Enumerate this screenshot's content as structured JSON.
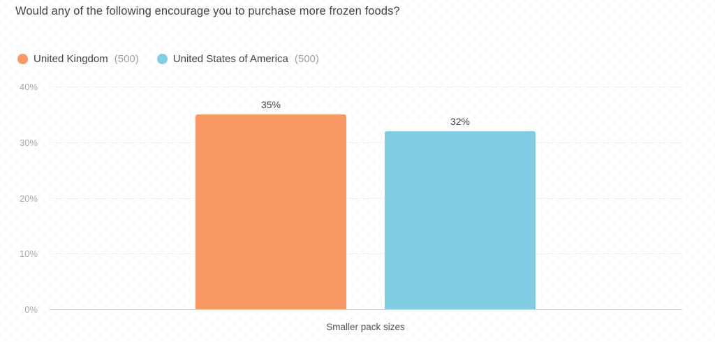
{
  "title": "Would any of the following encourage you to purchase more frozen foods?",
  "chart_data": {
    "type": "bar",
    "title": "Would any of the following encourage you to purchase more frozen foods?",
    "categories": [
      "Smaller pack sizes"
    ],
    "series": [
      {
        "name": "United Kingdom",
        "count_label": "(500)",
        "color": "#FA9964",
        "values": [
          35
        ],
        "value_labels": [
          "35%"
        ]
      },
      {
        "name": "United States of America",
        "count_label": "(500)",
        "color": "#7FCEE4",
        "values": [
          32
        ],
        "value_labels": [
          "32%"
        ]
      }
    ],
    "xlabel": "",
    "ylabel": "",
    "ylim": [
      0,
      40
    ],
    "yticks": [
      {
        "value": 0,
        "label": "0%"
      },
      {
        "value": 10,
        "label": "10%"
      },
      {
        "value": 20,
        "label": "20%"
      },
      {
        "value": 30,
        "label": "30%"
      },
      {
        "value": 40,
        "label": "40%"
      }
    ],
    "grid": true,
    "legend_position": "top-left"
  }
}
